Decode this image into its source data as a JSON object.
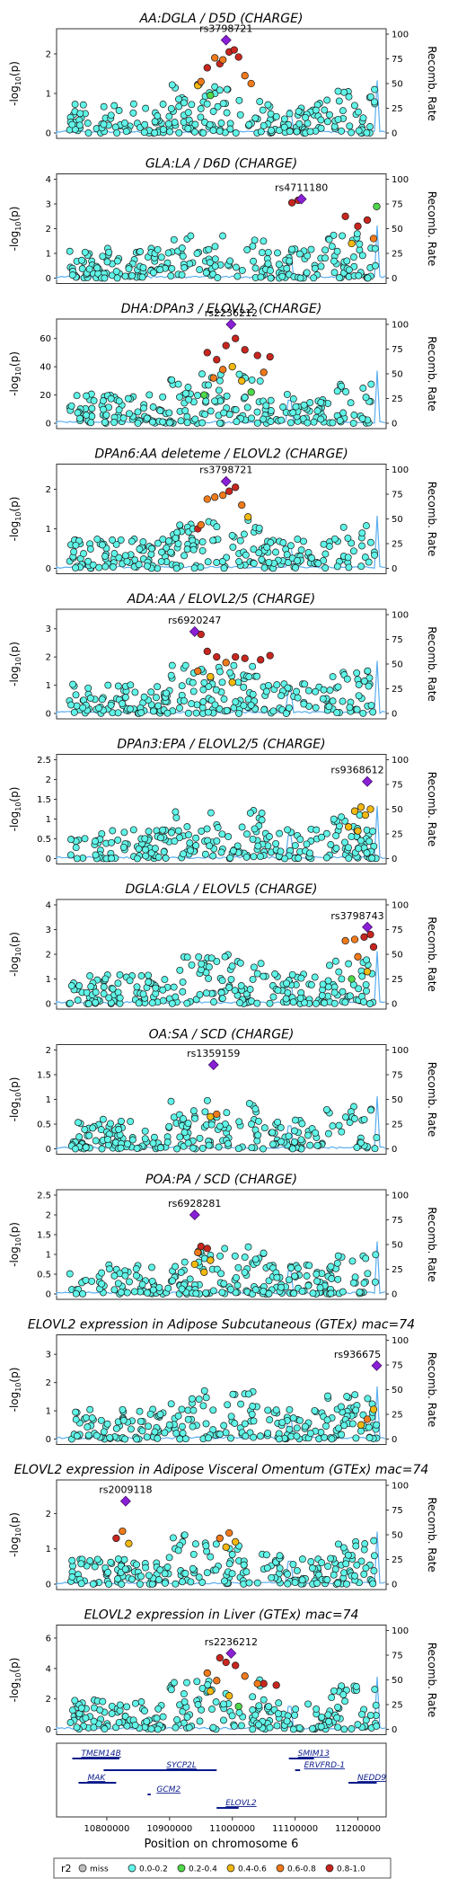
{
  "colors": {
    "miss": "#bdbdbd",
    "r2_0_0.2": "#5ff5e8",
    "r2_0.2_0.4": "#4fd84a",
    "r2_0.4_0.6": "#f2b80f",
    "r2_0.6_0.8": "#f07a1a",
    "r2_0.8_1.0": "#c8261e",
    "lead": "#8a1fd6",
    "recomb_line": "#5aaef0",
    "point_stroke": "#1a1a1a"
  },
  "y2_label": "Recomb. Rate",
  "y_label_main": "-log",
  "y_label_sub": "10",
  "y_label_end": "(p)",
  "x_label": "Position on chromosome 6",
  "chart_data": [
    {
      "type": "scatter",
      "title": "AA:DGLA / D5D (CHARGE)",
      "lead_snp": "rs3798721",
      "lead": [
        10990000,
        2.35
      ],
      "ylim": [
        0,
        2.5
      ],
      "yticks": [
        0,
        1,
        2
      ],
      "y2lim": [
        0,
        100
      ],
      "y2ticks": [
        0,
        25,
        50,
        75,
        100
      ],
      "ld_points": [
        [
          10960000,
          1.65,
          5
        ],
        [
          10972000,
          1.9,
          4
        ],
        [
          10980000,
          1.75,
          5
        ],
        [
          10995000,
          2.05,
          5
        ],
        [
          11003000,
          2.1,
          5
        ],
        [
          11010000,
          1.92,
          5
        ],
        [
          10945000,
          1.2,
          3
        ],
        [
          10950000,
          1.3,
          4
        ],
        [
          11020000,
          1.45,
          4
        ],
        [
          11030000,
          1.25,
          4
        ],
        [
          10985000,
          1.85,
          4
        ],
        [
          10965000,
          0.95,
          2
        ]
      ]
    },
    {
      "type": "scatter",
      "title": "GLA:LA / D6D (CHARGE)",
      "lead_snp": "rs4711180",
      "lead": [
        11110000,
        3.2,
        5
      ],
      "ylim": [
        0,
        4
      ],
      "yticks": [
        0,
        1,
        2,
        3,
        4
      ],
      "y2lim": [
        0,
        100
      ],
      "y2ticks": [
        0,
        25,
        50,
        75,
        100
      ],
      "ld_points": [
        [
          11095000,
          3.05,
          5
        ],
        [
          11105000,
          3.15,
          5
        ],
        [
          11180000,
          2.5,
          5
        ],
        [
          11200000,
          2.1,
          5
        ],
        [
          11215000,
          2.35,
          5
        ],
        [
          11225000,
          1.6,
          4
        ],
        [
          11230000,
          2.9,
          2
        ],
        [
          11190000,
          1.4,
          3
        ]
      ]
    },
    {
      "type": "scatter",
      "title": "DHA:DPAn3 / ELOVL2 (CHARGE)",
      "lead_snp": "rs2236212",
      "lead": [
        10998000,
        70
      ],
      "ylim": [
        0,
        70
      ],
      "yticks": [
        0,
        20,
        40,
        60
      ],
      "y2lim": [
        0,
        100
      ],
      "y2ticks": [
        0,
        25,
        50,
        75,
        100
      ],
      "ld_points": [
        [
          10960000,
          50,
          5
        ],
        [
          10975000,
          45,
          5
        ],
        [
          10990000,
          55,
          5
        ],
        [
          11005000,
          60,
          5
        ],
        [
          11020000,
          52,
          5
        ],
        [
          11040000,
          48,
          5
        ],
        [
          11060000,
          47,
          5
        ],
        [
          10970000,
          32,
          4
        ],
        [
          10985000,
          38,
          4
        ],
        [
          11000000,
          40,
          3
        ],
        [
          11015000,
          30,
          3
        ],
        [
          10955000,
          20,
          2
        ],
        [
          11030000,
          22,
          2
        ],
        [
          11050000,
          36,
          4
        ]
      ]
    },
    {
      "type": "scatter",
      "title": "DPAn6:AA deleteme / ELOVL2 (CHARGE)",
      "lead_snp": "rs3798721",
      "lead": [
        10990000,
        2.2
      ],
      "ylim": [
        0,
        2.5
      ],
      "yticks": [
        0,
        1,
        2
      ],
      "y2lim": [
        0,
        100
      ],
      "y2ticks": [
        0,
        25,
        50,
        75,
        100
      ],
      "ld_points": [
        [
          10960000,
          1.75,
          4
        ],
        [
          10972000,
          1.8,
          4
        ],
        [
          10995000,
          1.95,
          5
        ],
        [
          11005000,
          2.05,
          5
        ],
        [
          11015000,
          1.6,
          4
        ],
        [
          10945000,
          1.0,
          5
        ],
        [
          10950000,
          1.1,
          4
        ],
        [
          11025000,
          1.3,
          3
        ],
        [
          10985000,
          1.85,
          4
        ]
      ]
    },
    {
      "type": "scatter",
      "title": "ADA:AA / ELOVL2/5 (CHARGE)",
      "lead_snp": "rs6920247",
      "lead": [
        10940000,
        2.9
      ],
      "ylim": [
        0,
        3.5
      ],
      "yticks": [
        0,
        1,
        2,
        3
      ],
      "y2lim": [
        0,
        100
      ],
      "y2ticks": [
        0,
        25,
        50,
        75,
        100
      ],
      "ld_points": [
        [
          10950000,
          2.8,
          5
        ],
        [
          10960000,
          2.2,
          5
        ],
        [
          10975000,
          2.0,
          5
        ],
        [
          10990000,
          1.8,
          4
        ],
        [
          11005000,
          2.0,
          5
        ],
        [
          11020000,
          1.95,
          5
        ],
        [
          11045000,
          1.9,
          5
        ],
        [
          11060000,
          2.05,
          5
        ],
        [
          10945000,
          1.5,
          4
        ],
        [
          10965000,
          1.3,
          3
        ],
        [
          11000000,
          1.1,
          3
        ]
      ]
    },
    {
      "type": "scatter",
      "title": "DPAn3:EPA / ELOVL2/5 (CHARGE)",
      "lead_snp": "rs9368612",
      "lead": [
        11215000,
        1.95
      ],
      "ylim": [
        0,
        2.5
      ],
      "yticks": [
        0,
        0.5,
        1,
        1.5,
        2,
        2.5
      ],
      "y2lim": [
        0,
        100
      ],
      "y2ticks": [
        0,
        25,
        50,
        75,
        100
      ],
      "ld_points": [
        [
          11195000,
          1.2,
          3
        ],
        [
          11205000,
          1.3,
          3
        ],
        [
          11212000,
          1.1,
          3
        ],
        [
          11220000,
          1.25,
          3
        ],
        [
          11185000,
          0.8,
          3
        ],
        [
          11200000,
          0.7,
          3
        ]
      ]
    },
    {
      "type": "scatter",
      "title": "DGLA:GLA / ELOVL5 (CHARGE)",
      "lead_snp": "rs3798743",
      "lead": [
        11215000,
        3.1
      ],
      "ylim": [
        0,
        4
      ],
      "yticks": [
        0,
        1,
        2,
        3,
        4
      ],
      "y2lim": [
        0,
        100
      ],
      "y2ticks": [
        0,
        25,
        50,
        75,
        100
      ],
      "ld_points": [
        [
          11180000,
          2.55,
          4
        ],
        [
          11195000,
          2.6,
          4
        ],
        [
          11210000,
          2.7,
          5
        ],
        [
          11220000,
          2.8,
          5
        ],
        [
          11225000,
          2.3,
          5
        ],
        [
          11200000,
          1.9,
          4
        ],
        [
          11215000,
          1.3,
          3
        ],
        [
          11190000,
          1.0,
          2
        ]
      ]
    },
    {
      "type": "scatter",
      "title": "OA:SA / SCD (CHARGE)",
      "lead_snp": "rs1359159",
      "lead": [
        10970000,
        1.7
      ],
      "ylim": [
        0,
        2
      ],
      "yticks": [
        0,
        0.5,
        1,
        1.5,
        2
      ],
      "y2lim": [
        0,
        100
      ],
      "y2ticks": [
        0,
        25,
        50,
        75,
        100
      ],
      "ld_points": [
        [
          10965000,
          0.65,
          3
        ],
        [
          10975000,
          0.7,
          4
        ]
      ]
    },
    {
      "type": "scatter",
      "title": "POA:PA / SCD (CHARGE)",
      "lead_snp": "rs6928281",
      "lead": [
        10940000,
        2.0
      ],
      "ylim": [
        0,
        2.5
      ],
      "yticks": [
        0,
        0.5,
        1,
        1.5,
        2,
        2.5
      ],
      "y2lim": [
        0,
        100
      ],
      "y2ticks": [
        0,
        25,
        50,
        75,
        100
      ],
      "ld_points": [
        [
          10950000,
          1.2,
          5
        ],
        [
          10960000,
          1.15,
          5
        ],
        [
          10945000,
          1.05,
          4
        ],
        [
          10965000,
          0.85,
          3
        ],
        [
          10955000,
          0.55,
          3
        ],
        [
          10940000,
          0.75,
          3
        ]
      ]
    },
    {
      "type": "scatter",
      "title": "ELOVL2 expression in Adipose Subcutaneous (GTEx) mac=74",
      "lead_snp": "rs936675",
      "lead": [
        11230000,
        2.6
      ],
      "ylim": [
        0,
        3.5
      ],
      "yticks": [
        0,
        1,
        2,
        3
      ],
      "y2lim": [
        0,
        100
      ],
      "y2ticks": [
        0,
        25,
        50,
        75,
        100
      ],
      "ld_points": [
        [
          11225000,
          1.05,
          3
        ],
        [
          11215000,
          0.7,
          4
        ],
        [
          11205000,
          0.5,
          3
        ]
      ]
    },
    {
      "type": "scatter",
      "title": "ELOVL2 expression in Adipose Visceral Omentum (GTEx) mac=74",
      "lead_snp": "rs2009118",
      "lead": [
        10830000,
        2.35
      ],
      "ylim": [
        0,
        2.8
      ],
      "yticks": [
        0,
        1,
        2
      ],
      "y2lim": [
        0,
        100
      ],
      "y2ticks": [
        0,
        25,
        50,
        75,
        100
      ],
      "ld_points": [
        [
          10825000,
          1.5,
          4
        ],
        [
          10815000,
          1.3,
          5
        ],
        [
          10835000,
          1.15,
          3
        ],
        [
          10980000,
          1.3,
          4
        ],
        [
          10995000,
          1.45,
          4
        ],
        [
          11005000,
          1.2,
          3
        ],
        [
          10990000,
          1.05,
          3
        ]
      ]
    },
    {
      "type": "scatter",
      "title": "ELOVL2 expression in Liver (GTEx) mac=74",
      "lead_snp": "rs2236212",
      "lead": [
        10998000,
        5.0
      ],
      "ylim": [
        0,
        6.5
      ],
      "yticks": [
        0,
        2,
        4,
        6
      ],
      "y2lim": [
        0,
        100
      ],
      "y2ticks": [
        0,
        25,
        50,
        75,
        100
      ],
      "ld_points": [
        [
          10980000,
          4.7,
          5
        ],
        [
          10990000,
          4.4,
          5
        ],
        [
          11005000,
          4.2,
          5
        ],
        [
          11050000,
          3.0,
          5
        ],
        [
          11070000,
          2.9,
          5
        ],
        [
          10960000,
          3.7,
          4
        ],
        [
          10975000,
          3.2,
          4
        ],
        [
          11020000,
          3.5,
          4
        ],
        [
          11040000,
          3.0,
          4
        ],
        [
          10965000,
          2.5,
          3
        ],
        [
          10995000,
          2.2,
          3
        ],
        [
          11010000,
          1.5,
          2
        ]
      ]
    }
  ],
  "genes": [
    {
      "name": "TMEM14B",
      "start": 10745000,
      "end": 10820000,
      "row": 0
    },
    {
      "name": "SYCP2L",
      "start": 10795000,
      "end": 10975000,
      "row": 1
    },
    {
      "name": "MAK",
      "start": 10755000,
      "end": 10815000,
      "row": 2
    },
    {
      "name": "GCM2",
      "start": 10865000,
      "end": 10870000,
      "row": 3
    },
    {
      "name": "SMIM13",
      "start": 11090000,
      "end": 11130000,
      "row": 0
    },
    {
      "name": "ERVFRD-1",
      "start": 11100000,
      "end": 11108000,
      "row": 1
    },
    {
      "name": "NEDD9",
      "start": 11185000,
      "end": 11230000,
      "row": 2
    },
    {
      "name": "ELOVL2",
      "start": 10975000,
      "end": 11010000,
      "row": 4
    }
  ],
  "x_ticks": [
    10800000,
    10900000,
    11000000,
    11100000,
    11200000
  ],
  "x_tick_labels": [
    "10800000",
    "10900000",
    "11000000",
    "11100000",
    "11200000"
  ],
  "xlim": [
    10720000,
    11245000
  ],
  "legend": {
    "title": "r2",
    "entries": [
      "miss",
      "0.0-0.2",
      "0.2-0.4",
      "0.4-0.6",
      "0.6-0.8",
      "0.8-1.0"
    ]
  }
}
